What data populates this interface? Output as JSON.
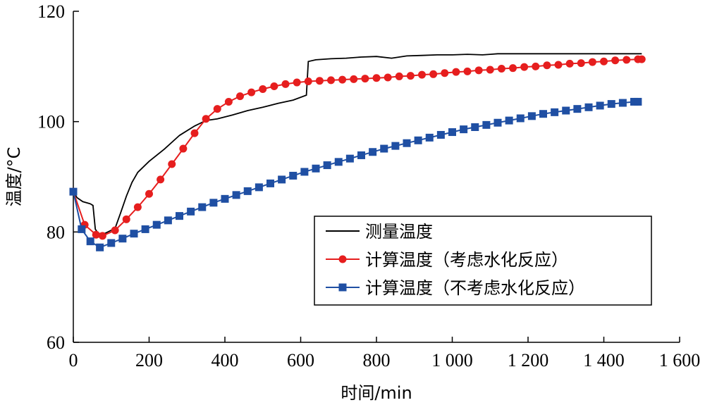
{
  "chart_data": {
    "type": "line",
    "xlabel": "时间/min",
    "ylabel": "温度/°C",
    "xlim": [
      0,
      1600
    ],
    "ylim": [
      60,
      120
    ],
    "x_ticks": [
      0,
      200,
      400,
      600,
      800,
      1000,
      1200,
      1400,
      1600
    ],
    "x_tick_labels": [
      "0",
      "200",
      "400",
      "600",
      "800",
      "1 000",
      "1 200",
      "1 400",
      "1 600"
    ],
    "y_ticks": [
      60,
      80,
      100,
      120
    ],
    "y_tick_labels": [
      "60",
      "80",
      "100",
      "120"
    ],
    "grid": false,
    "legend_position": "center-right",
    "series": [
      {
        "name": "测量温度",
        "color": "#000000",
        "marker": "none",
        "x": [
          0,
          10,
          25,
          45,
          52,
          58,
          65,
          75,
          85,
          100,
          110,
          125,
          140,
          155,
          170,
          200,
          240,
          280,
          320,
          350,
          380,
          420,
          460,
          500,
          540,
          580,
          615,
          620,
          640,
          680,
          720,
          760,
          800,
          840,
          880,
          920,
          960,
          1000,
          1040,
          1080,
          1100,
          1120,
          1160,
          1200,
          1240,
          1280,
          1320,
          1360,
          1400,
          1440,
          1480,
          1500
        ],
        "y": [
          87.3,
          86.2,
          85.5,
          85.1,
          84.8,
          80.5,
          79.8,
          79.6,
          79.8,
          80.3,
          80.6,
          83.5,
          86.5,
          89.0,
          90.8,
          92.8,
          95.0,
          97.5,
          99.2,
          100.2,
          100.5,
          101.2,
          102.0,
          102.6,
          103.3,
          103.9,
          104.8,
          110.9,
          111.2,
          111.4,
          111.5,
          111.7,
          111.8,
          111.5,
          111.9,
          112.0,
          112.1,
          112.1,
          112.2,
          112.1,
          112.2,
          112.3,
          112.3,
          112.3,
          112.3,
          112.3,
          112.3,
          112.3,
          112.3,
          112.3,
          112.3,
          112.3
        ]
      },
      {
        "name": "计算温度（考虑水化反应）",
        "color": "#e61e1e",
        "marker": "circle",
        "x": [
          0,
          30,
          60,
          77,
          110,
          140,
          170,
          200,
          230,
          260,
          290,
          320,
          350,
          380,
          410,
          440,
          470,
          500,
          530,
          560,
          590,
          620,
          650,
          680,
          710,
          740,
          770,
          800,
          830,
          860,
          890,
          920,
          950,
          980,
          1010,
          1040,
          1070,
          1100,
          1130,
          1160,
          1190,
          1220,
          1250,
          1280,
          1310,
          1340,
          1370,
          1400,
          1430,
          1460,
          1490,
          1500
        ],
        "y": [
          87.3,
          81.3,
          79.5,
          79.3,
          80.3,
          82.3,
          84.5,
          86.9,
          89.5,
          92.3,
          95.1,
          97.9,
          100.5,
          102.3,
          103.6,
          104.6,
          105.3,
          105.9,
          106.4,
          106.8,
          107.1,
          107.3,
          107.4,
          107.5,
          107.6,
          107.7,
          107.8,
          107.9,
          108.0,
          108.2,
          108.3,
          108.5,
          108.6,
          108.8,
          109.0,
          109.1,
          109.3,
          109.4,
          109.6,
          109.7,
          109.9,
          110.0,
          110.2,
          110.3,
          110.5,
          110.6,
          110.8,
          110.9,
          111.1,
          111.2,
          111.3,
          111.3
        ]
      },
      {
        "name": "计算温度（不考虑水化反应）",
        "color": "#1f4fa3",
        "marker": "square",
        "x": [
          0,
          22,
          45,
          70,
          100,
          130,
          160,
          190,
          220,
          250,
          280,
          310,
          340,
          370,
          400,
          430,
          460,
          490,
          520,
          550,
          580,
          610,
          640,
          670,
          700,
          730,
          760,
          790,
          820,
          850,
          880,
          910,
          940,
          970,
          1000,
          1030,
          1060,
          1090,
          1120,
          1150,
          1180,
          1210,
          1240,
          1270,
          1300,
          1330,
          1360,
          1390,
          1420,
          1450,
          1480,
          1490
        ],
        "y": [
          87.3,
          80.5,
          78.3,
          77.2,
          78.0,
          78.8,
          79.7,
          80.5,
          81.3,
          82.1,
          82.9,
          83.7,
          84.5,
          85.3,
          86.0,
          86.7,
          87.4,
          88.1,
          88.8,
          89.5,
          90.2,
          90.9,
          91.5,
          92.1,
          92.7,
          93.3,
          93.9,
          94.5,
          95.1,
          95.6,
          96.1,
          96.6,
          97.1,
          97.6,
          98.1,
          98.6,
          99.0,
          99.4,
          99.8,
          100.2,
          100.6,
          101.0,
          101.4,
          101.7,
          102.0,
          102.3,
          102.6,
          102.9,
          103.2,
          103.4,
          103.6,
          103.6
        ]
      }
    ]
  }
}
